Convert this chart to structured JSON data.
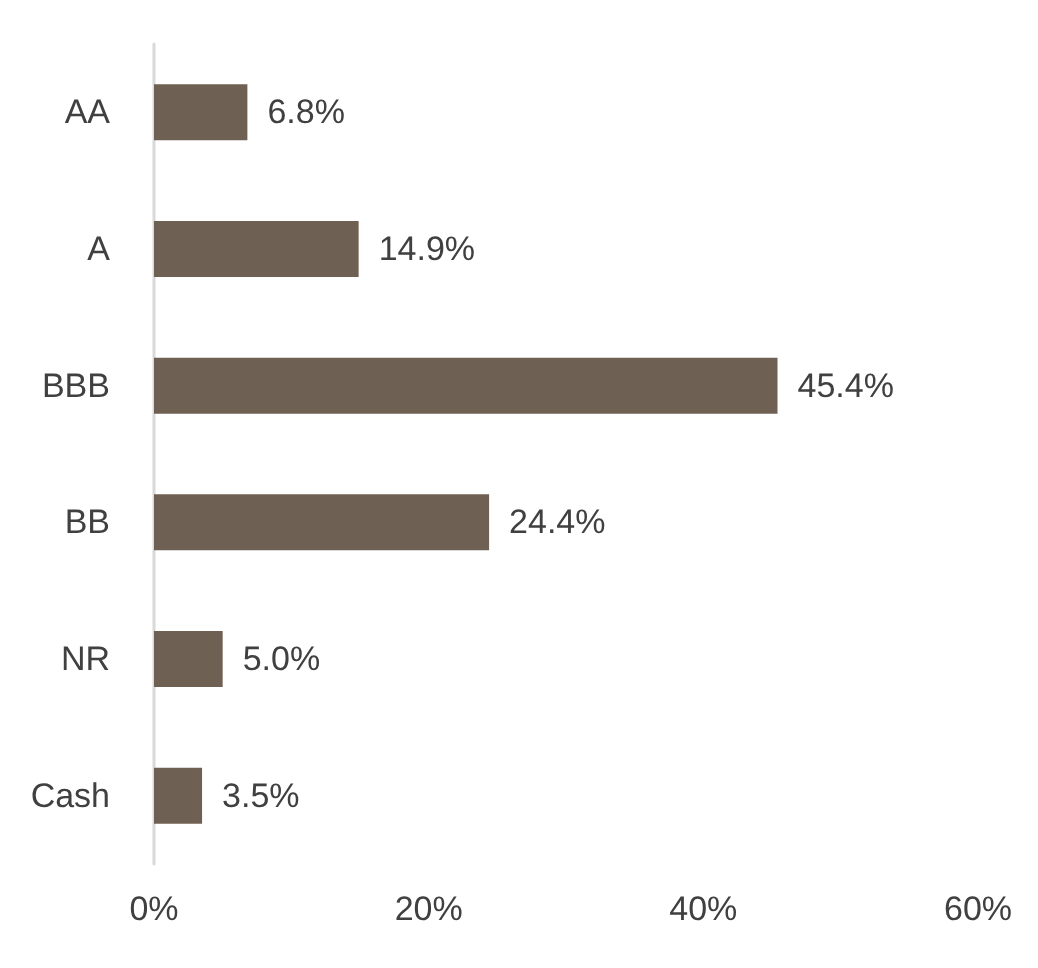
{
  "chart_data": {
    "type": "bar",
    "orientation": "horizontal",
    "categories": [
      "AA",
      "A",
      "BBB",
      "BB",
      "NR",
      "Cash"
    ],
    "values": [
      6.8,
      14.9,
      45.4,
      24.4,
      5.0,
      3.5
    ],
    "value_labels": [
      "6.8%",
      "14.9%",
      "45.4%",
      "24.4%",
      "5.0%",
      "3.5%"
    ],
    "color": "#6e6053",
    "xlim": [
      0,
      60
    ],
    "xticks": [
      {
        "value": 0,
        "label": "0%"
      },
      {
        "value": 20,
        "label": "20%"
      },
      {
        "value": 40,
        "label": "40%"
      },
      {
        "value": 60,
        "label": "60%"
      }
    ],
    "grid": false
  }
}
